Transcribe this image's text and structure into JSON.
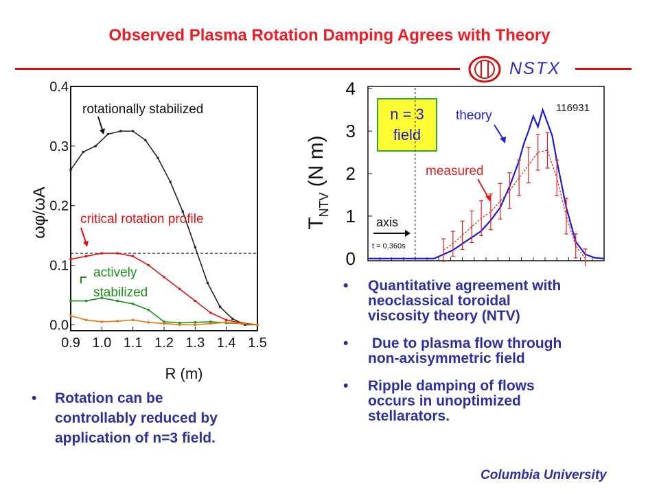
{
  "slide": {
    "title": "Observed Plasma Rotation Damping Agrees with Theory",
    "logo_text": "NSTX",
    "footer": "Columbia University",
    "left_bullets": [
      {
        "dot": "•",
        "lines": [
          "Rotation can be",
          "controllably reduced by",
          "application of n=3 field."
        ]
      }
    ],
    "right_bullets": [
      {
        "dot": "•",
        "lines": [
          "Quantitative agreement with",
          "neoclassical toroidal",
          "viscosity theory (NTV)"
        ]
      },
      {
        "dot": "•",
        "lines": [
          " Due to plasma flow through",
          "non-axisymmetric field"
        ]
      },
      {
        "dot": "•",
        "lines": [
          "Ripple damping of flows",
          "occurs in unoptimized",
          "stellarators."
        ]
      }
    ]
  },
  "colors": {
    "title": "#ee1c25",
    "bullet_text": "#2d2f9e",
    "rules": "#cc1111",
    "logo": "#2b2bbf"
  },
  "chart_data": [
    {
      "type": "line",
      "xlabel": "R (m)",
      "ylabel": "ωφ/ωA",
      "xlim": [
        0.9,
        1.5
      ],
      "ylim": [
        -0.01,
        0.4
      ],
      "xticks": [
        "0.9",
        "1.0",
        "1.1",
        "1.2",
        "1.3",
        "1.4",
        "1.5"
      ],
      "yticks": [
        "0.0",
        "0.1",
        "0.2",
        "0.3",
        "0.4"
      ],
      "reference_line_y": 0.12,
      "series": [
        {
          "color": "#222222",
          "x": [
            0.9,
            0.94,
            0.98,
            1.02,
            1.06,
            1.1,
            1.14,
            1.18,
            1.22,
            1.26,
            1.3,
            1.34,
            1.38,
            1.42,
            1.46,
            1.5
          ],
          "y": [
            0.26,
            0.29,
            0.3,
            0.32,
            0.325,
            0.325,
            0.31,
            0.28,
            0.24,
            0.19,
            0.13,
            0.07,
            0.03,
            0.01,
            0.0,
            0.0
          ]
        },
        {
          "color": "#dd1111",
          "x": [
            0.9,
            0.95,
            1.0,
            1.05,
            1.1,
            1.15,
            1.2,
            1.25,
            1.3,
            1.35,
            1.4,
            1.45,
            1.5
          ],
          "y": [
            0.11,
            0.115,
            0.12,
            0.12,
            0.115,
            0.1,
            0.08,
            0.06,
            0.04,
            0.02,
            0.008,
            0.003,
            0.0
          ]
        },
        {
          "color": "#1a8f1a",
          "x": [
            0.9,
            0.95,
            1.0,
            1.05,
            1.1,
            1.15,
            1.2,
            1.25,
            1.3,
            1.35,
            1.4,
            1.45,
            1.5
          ],
          "y": [
            0.04,
            0.04,
            0.045,
            0.04,
            0.035,
            0.025,
            0.005,
            0.003,
            0.004,
            0.005,
            0.003,
            0.002,
            0.0
          ]
        },
        {
          "color": "#e07a10",
          "x": [
            0.9,
            0.95,
            1.0,
            1.05,
            1.1,
            1.15,
            1.2,
            1.25,
            1.3,
            1.35,
            1.4,
            1.45,
            1.5
          ],
          "y": [
            0.015,
            0.008,
            0.005,
            0.006,
            0.008,
            0.004,
            0.002,
            0.0,
            0.0,
            0.002,
            0.004,
            0.002,
            0.0
          ]
        }
      ],
      "annotations": [
        "rotationally stabilized",
        "critical rotation profile",
        "actively",
        "stabilized"
      ]
    },
    {
      "type": "line",
      "xlabel": "",
      "ylabel": "T",
      "ylabel_sub": "NTV",
      "ylabel_unit": "(N m)",
      "xlim": [
        0,
        1
      ],
      "ylim": [
        -0.05,
        4.05
      ],
      "yticks": [
        "0",
        "1",
        "2",
        "3",
        "4"
      ],
      "axis_marker_x": 0.2,
      "series": [
        {
          "name": "theory",
          "color": "#1c1cd6",
          "x": [
            0.0,
            0.28,
            0.32,
            0.36,
            0.4,
            0.44,
            0.48,
            0.52,
            0.56,
            0.6,
            0.64,
            0.66,
            0.68,
            0.7,
            0.72,
            0.74,
            0.76,
            0.78,
            0.8,
            0.84,
            0.88,
            0.92,
            0.96,
            1.0
          ],
          "y": [
            0.0,
            0.0,
            0.1,
            0.2,
            0.35,
            0.5,
            0.65,
            0.9,
            1.2,
            1.7,
            2.3,
            2.7,
            3.0,
            3.35,
            3.1,
            3.5,
            3.2,
            2.9,
            2.3,
            1.2,
            0.4,
            0.1,
            0.02,
            0.0
          ]
        },
        {
          "name": "measured",
          "color": "#e02020",
          "x": [
            0.32,
            0.36,
            0.4,
            0.44,
            0.48,
            0.52,
            0.56,
            0.6,
            0.64,
            0.68,
            0.72,
            0.76,
            0.8,
            0.84,
            0.88,
            0.92
          ],
          "y": [
            0.2,
            0.35,
            0.55,
            0.75,
            0.95,
            1.1,
            1.35,
            1.6,
            1.9,
            2.2,
            2.5,
            2.55,
            1.9,
            1.0,
            0.3,
            0.0
          ]
        }
      ],
      "annotations": [
        "n = 3",
        "field",
        "theory",
        "measured",
        "116931",
        "axis",
        "t = 0.360s"
      ]
    }
  ]
}
